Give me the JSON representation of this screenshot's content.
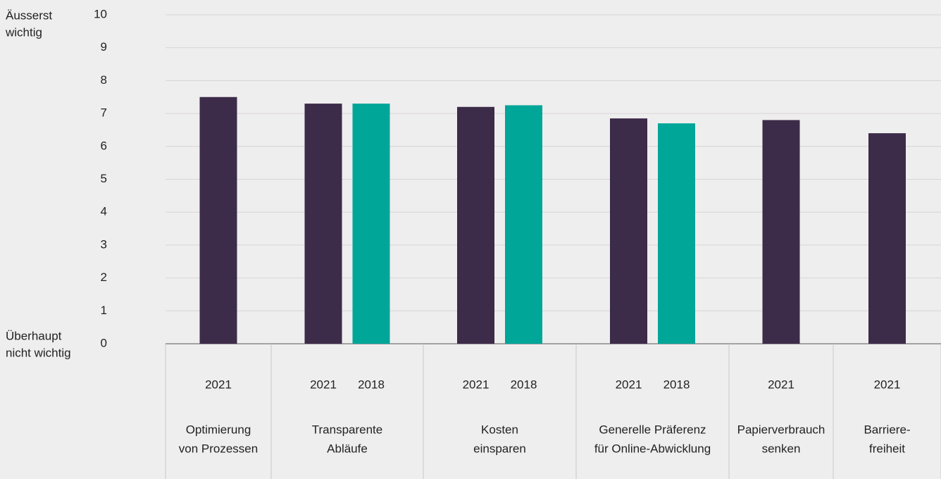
{
  "chart_data": {
    "type": "bar",
    "y_top_label": [
      "Äusserst",
      "wichtig"
    ],
    "y_bottom_label": [
      "Überhaupt",
      "nicht wichtig"
    ],
    "categories": [
      [
        "Optimierung",
        "von Prozessen"
      ],
      [
        "Transparente",
        "Abläufe"
      ],
      [
        "Kosten",
        "einsparen"
      ],
      [
        "Generelle Präferenz",
        "für Online-Abwicklung"
      ],
      [
        "Papierverbrauch",
        "senken"
      ],
      [
        "Barriere-",
        "freiheit"
      ]
    ],
    "series": [
      {
        "name": "2021",
        "color": "#3d2b4a",
        "values": [
          7.5,
          7.3,
          7.2,
          6.85,
          6.8,
          6.4
        ]
      },
      {
        "name": "2018",
        "color": "#00a698",
        "values": [
          null,
          7.3,
          7.25,
          6.7,
          null,
          null
        ]
      }
    ],
    "ylim": [
      0,
      10
    ],
    "yticks": [
      0,
      1,
      2,
      3,
      4,
      5,
      6,
      7,
      8,
      9,
      10
    ],
    "grid": true
  }
}
